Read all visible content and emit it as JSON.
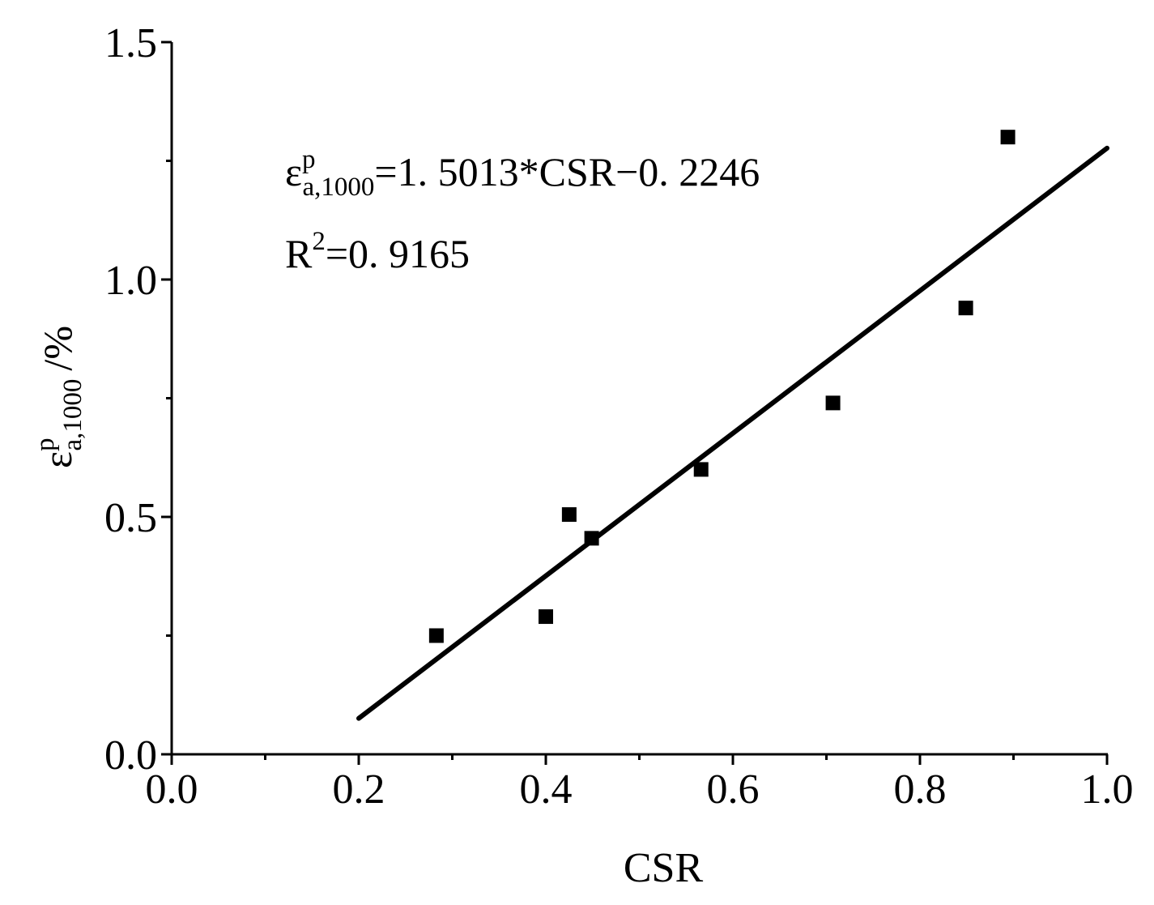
{
  "chart_data": {
    "type": "scatter",
    "xlabel": "CSR",
    "ylabel": {
      "base": "ε",
      "superscript": "p",
      "subscript": "a,1000",
      "unit": "/%"
    },
    "xlim": [
      0.0,
      1.0
    ],
    "ylim": [
      0.0,
      1.5
    ],
    "x_ticks": [
      "0.0",
      "0.2",
      "0.4",
      "0.6",
      "0.8",
      "1.0"
    ],
    "y_ticks": [
      "0.0",
      "0.5",
      "1.0",
      "1.5"
    ],
    "x_tick_values": [
      0.0,
      0.2,
      0.4,
      0.6,
      0.8,
      1.0
    ],
    "y_tick_values": [
      0.0,
      0.5,
      1.0,
      1.5
    ],
    "x_minor_ticks": [
      0.1,
      0.3,
      0.5,
      0.7,
      0.9
    ],
    "y_minor_ticks": [
      0.25,
      0.75,
      1.25
    ],
    "grid": false,
    "points": [
      {
        "x": 0.283,
        "y": 0.25
      },
      {
        "x": 0.4,
        "y": 0.29
      },
      {
        "x": 0.425,
        "y": 0.505
      },
      {
        "x": 0.449,
        "y": 0.455
      },
      {
        "x": 0.566,
        "y": 0.6
      },
      {
        "x": 0.707,
        "y": 0.74
      },
      {
        "x": 0.849,
        "y": 0.94
      },
      {
        "x": 0.894,
        "y": 1.3
      }
    ],
    "fit_line": {
      "slope": 1.5013,
      "intercept": -0.2246,
      "x_range": [
        0.2,
        1.0
      ]
    },
    "annotations": {
      "equation": {
        "base": "ε",
        "superscript": "p",
        "subscript": "a,1000",
        "rest": "=1. 5013*CSR−0. 2246"
      },
      "r_squared": {
        "base": "R",
        "superscript": "2",
        "rest": "=0. 9165"
      }
    },
    "marker_color": "#000000",
    "line_color": "#000000"
  }
}
